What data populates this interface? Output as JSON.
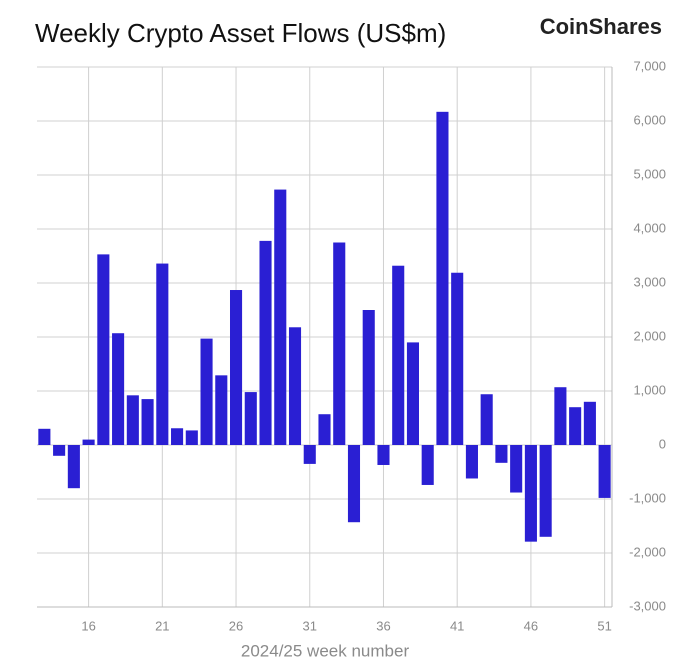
{
  "chart_data": {
    "type": "bar",
    "title": "Weekly Crypto Asset Flows (US$m)",
    "brand": "CoinShares",
    "x_label": "2024/25 week number",
    "x": [
      13,
      14,
      15,
      16,
      17,
      18,
      19,
      20,
      21,
      22,
      23,
      24,
      25,
      26,
      27,
      28,
      29,
      30,
      31,
      32,
      33,
      34,
      35,
      36,
      37,
      38,
      39,
      40,
      41,
      42,
      43,
      44,
      45,
      46,
      47,
      48,
      49,
      50,
      51
    ],
    "values": [
      300,
      -200,
      -800,
      100,
      3530,
      2070,
      920,
      850,
      3360,
      310,
      270,
      1970,
      1290,
      2870,
      980,
      3780,
      4730,
      2180,
      -350,
      570,
      3750,
      -1430,
      2500,
      -370,
      3320,
      1900,
      -740,
      6170,
      3190,
      -620,
      940,
      -330,
      -880,
      -1790,
      -1700,
      1070,
      700,
      800,
      -980
    ],
    "color": "#2a1fd3",
    "xlim": [
      12.5,
      51.5
    ],
    "xticks": [
      16,
      21,
      26,
      31,
      36,
      41,
      46,
      51
    ],
    "ylim": [
      -3000,
      7000
    ],
    "yticks": [
      {
        "value": -3000,
        "label": "-3,000"
      },
      {
        "value": -2000,
        "label": "-2,000"
      },
      {
        "value": -1000,
        "label": "-1,000"
      },
      0,
      {
        "value": 1000,
        "label": "1,000"
      },
      {
        "value": 2000,
        "label": "2,000"
      },
      {
        "value": 3000,
        "label": "3,000"
      },
      {
        "value": 4000,
        "label": "4,000"
      },
      {
        "value": 5000,
        "label": "5,000"
      },
      {
        "value": 6000,
        "label": "6,000"
      },
      {
        "value": 7000,
        "label": "7,000"
      }
    ],
    "grid": true
  }
}
